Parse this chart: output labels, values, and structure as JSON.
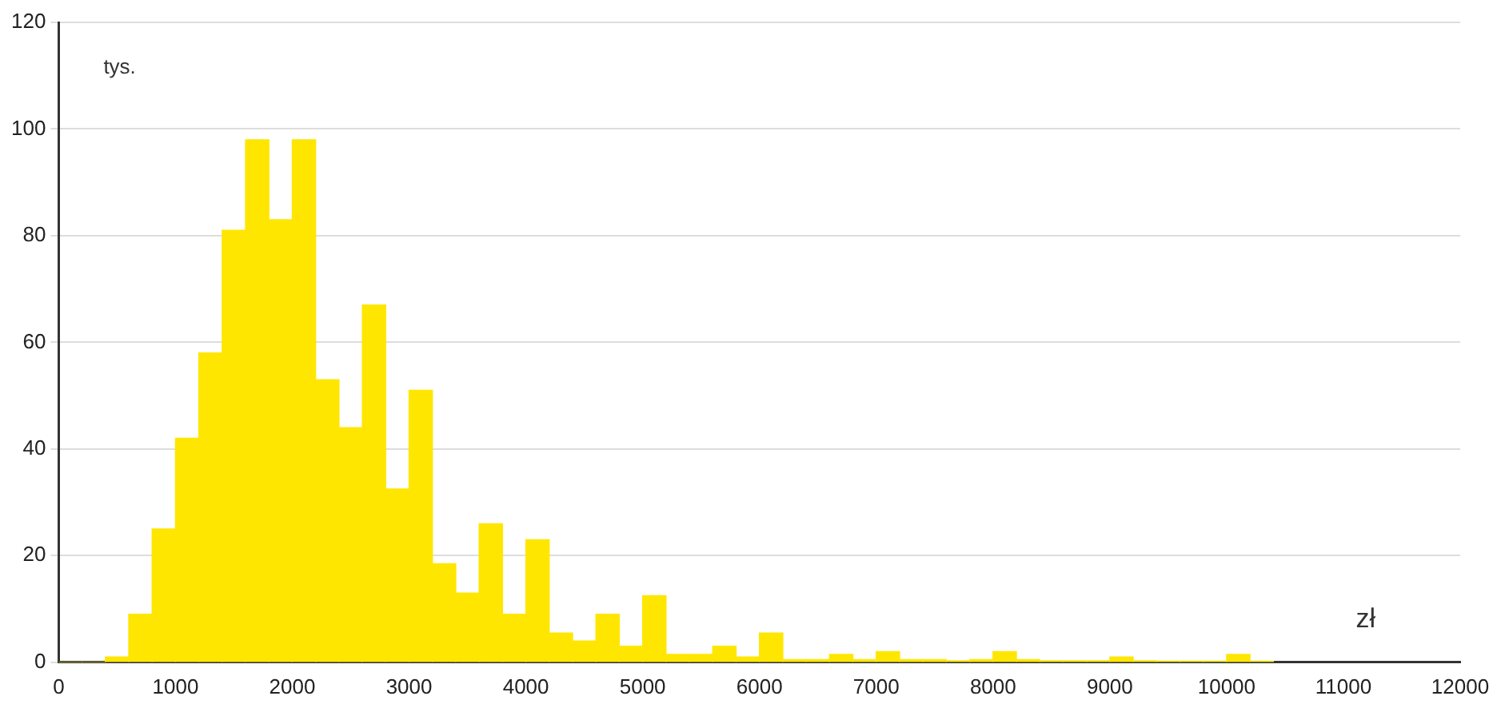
{
  "chart_data": {
    "type": "histogram",
    "xlabel": "zł",
    "ylabel": "tys.",
    "color": "#ffe600",
    "bins": [
      0,
      200,
      400,
      600,
      800,
      1000,
      1200,
      1400,
      1600,
      1800,
      2000,
      2200,
      2400,
      2600,
      2800,
      3000,
      3200,
      3400,
      3600,
      3800,
      4000,
      4200,
      4400,
      4600,
      4800,
      5000,
      5200,
      5400,
      5600,
      5800,
      6000,
      6200,
      6400,
      6600,
      6800,
      7000,
      7200,
      7400,
      7600,
      7800,
      8000,
      8200,
      8400,
      8600,
      8800,
      9000,
      9200,
      9400,
      9600,
      9800,
      10000,
      10200,
      10400
    ],
    "values": [
      0,
      0,
      1,
      9,
      25,
      42,
      58,
      81,
      98,
      83,
      98,
      53,
      44,
      67,
      32.5,
      51,
      18.5,
      13,
      26,
      9,
      23,
      5.5,
      4,
      9,
      3,
      12.5,
      1.5,
      1.5,
      3,
      1,
      5.5,
      0.5,
      0.5,
      1.5,
      0.5,
      2,
      0.5,
      0.5,
      0.3,
      0.5,
      2,
      0.5,
      0.3,
      0.3,
      0.3,
      1,
      0.3,
      0.2,
      0.2,
      0.2,
      1.5,
      0.2
    ],
    "xlim": [
      0,
      12000
    ],
    "xticks": [
      0,
      1000,
      2000,
      3000,
      4000,
      5000,
      6000,
      7000,
      8000,
      9000,
      10000,
      11000,
      12000
    ],
    "ylim": [
      0,
      120
    ],
    "yticks": [
      0,
      20,
      40,
      60,
      80,
      100,
      120
    ],
    "grid": "y"
  }
}
